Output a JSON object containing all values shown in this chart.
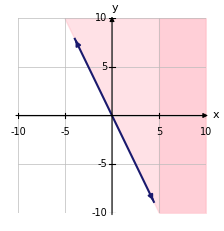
{
  "xlim": [
    -10,
    10
  ],
  "ylim": [
    -10,
    10
  ],
  "xticks": [
    -10,
    -5,
    0,
    5,
    10
  ],
  "yticks": [
    -10,
    -5,
    0,
    5,
    10
  ],
  "grid_color": "#bbbbbb",
  "line_color": "#1a1a6e",
  "shade_color": "#ffb6c1",
  "shade_alpha": 0.4,
  "line_slope": -2,
  "xlabel": "x",
  "ylabel": "y",
  "figsize": [
    2.24,
    2.31
  ],
  "dpi": 100,
  "line_x_start": -4.0,
  "line_x_end": 4.5,
  "tick_fontsize": 7,
  "label_fontsize": 8
}
